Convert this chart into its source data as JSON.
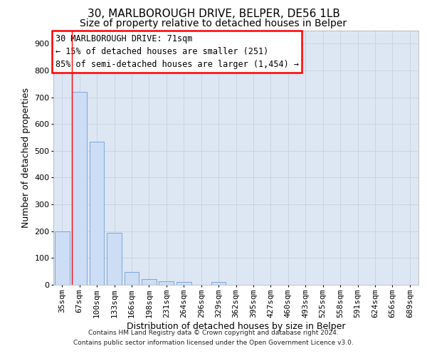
{
  "title1": "30, MARLBOROUGH DRIVE, BELPER, DE56 1LB",
  "title2": "Size of property relative to detached houses in Belper",
  "xlabel": "Distribution of detached houses by size in Belper",
  "ylabel": "Number of detached properties",
  "categories": [
    "35sqm",
    "67sqm",
    "100sqm",
    "133sqm",
    "166sqm",
    "198sqm",
    "231sqm",
    "264sqm",
    "296sqm",
    "329sqm",
    "362sqm",
    "395sqm",
    "427sqm",
    "460sqm",
    "493sqm",
    "525sqm",
    "558sqm",
    "591sqm",
    "624sqm",
    "656sqm",
    "689sqm"
  ],
  "values": [
    200,
    720,
    535,
    193,
    47,
    22,
    14,
    10,
    0,
    10,
    0,
    0,
    0,
    0,
    0,
    0,
    0,
    0,
    0,
    0,
    0
  ],
  "bar_color": "#ccddf5",
  "bar_edge_color": "#5b8fd4",
  "grid_color": "#c8d4e6",
  "background_color": "#dde6f3",
  "annotation_line1": "30 MARLBOROUGH DRIVE: 71sqm",
  "annotation_line2": "← 15% of detached houses are smaller (251)",
  "annotation_line3": "85% of semi-detached houses are larger (1,454) →",
  "ylim": [
    0,
    950
  ],
  "yticks": [
    0,
    100,
    200,
    300,
    400,
    500,
    600,
    700,
    800,
    900
  ],
  "footer_line1": "Contains HM Land Registry data © Crown copyright and database right 2024.",
  "footer_line2": "Contains public sector information licensed under the Open Government Licence v3.0.",
  "title1_fontsize": 11,
  "title2_fontsize": 10,
  "xlabel_fontsize": 9,
  "ylabel_fontsize": 9,
  "tick_fontsize": 8,
  "ann_fontsize": 8.5
}
